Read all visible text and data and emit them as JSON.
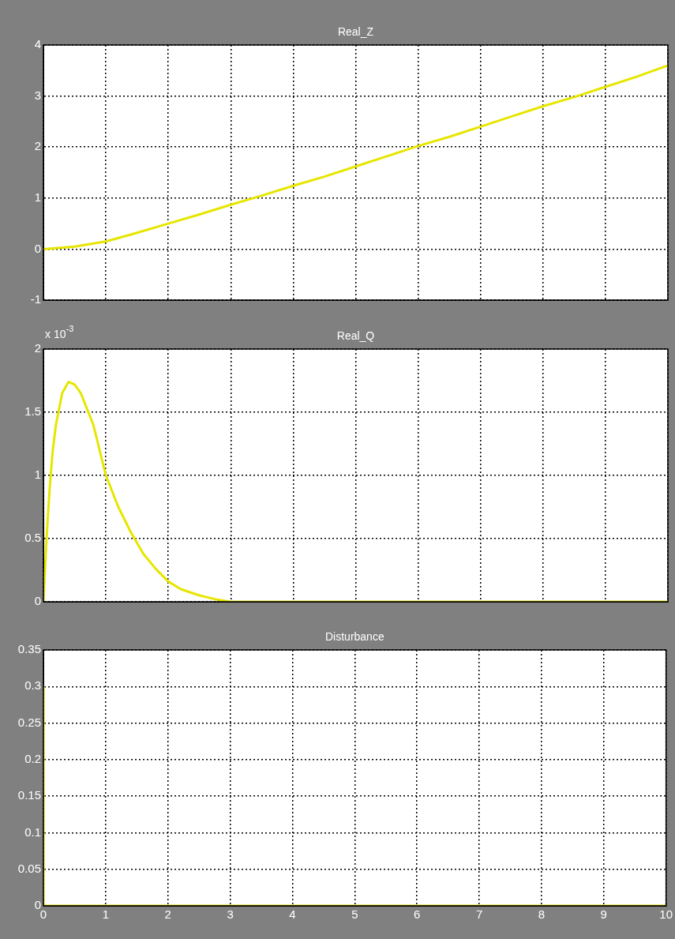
{
  "chart_data": [
    {
      "type": "line",
      "title": "Real_Z",
      "x": [
        0,
        0.5,
        1,
        1.5,
        2,
        2.5,
        3,
        3.5,
        4,
        4.5,
        5,
        5.5,
        6,
        6.5,
        7,
        7.5,
        8,
        8.5,
        9,
        9.5,
        10
      ],
      "series": [
        {
          "color": "#e6e600",
          "values": [
            0,
            0.05,
            0.15,
            0.32,
            0.5,
            0.68,
            0.87,
            1.05,
            1.24,
            1.42,
            1.62,
            1.82,
            2.02,
            2.2,
            2.4,
            2.6,
            2.8,
            2.98,
            3.18,
            3.38,
            3.6
          ]
        }
      ],
      "xlim": [
        0,
        10
      ],
      "xticks": [
        0,
        1,
        2,
        3,
        4,
        5,
        6,
        7,
        8,
        9,
        10
      ],
      "ylim": [
        -1,
        4
      ],
      "yticks": [
        -1,
        0,
        1,
        2,
        3,
        4
      ],
      "grid": true,
      "legend": false,
      "tick_labels": "y",
      "marker": "none",
      "line_style": "solid"
    },
    {
      "type": "line",
      "title": "Real_Q",
      "annotations": [
        "x 10$^{-3}$"
      ],
      "x": [
        0,
        0.05,
        0.1,
        0.15,
        0.2,
        0.3,
        0.4,
        0.5,
        0.6,
        0.8,
        1,
        1.2,
        1.4,
        1.6,
        1.8,
        2,
        2.2,
        2.5,
        2.8,
        3,
        10
      ],
      "series": [
        {
          "color": "#e6e600",
          "values": [
            0,
            0.5,
            0.9,
            1.2,
            1.4,
            1.65,
            1.74,
            1.72,
            1.65,
            1.4,
            1.0,
            0.75,
            0.55,
            0.38,
            0.26,
            0.16,
            0.1,
            0.05,
            0.015,
            0,
            0
          ]
        }
      ],
      "xlim": [
        0,
        10
      ],
      "xticks": [
        0,
        1,
        2,
        3,
        4,
        5,
        6,
        7,
        8,
        9,
        10
      ],
      "ylim": [
        0,
        2
      ],
      "yticks": [
        0,
        0.5,
        1,
        1.5,
        2
      ],
      "grid": true,
      "legend": false,
      "tick_labels": "y",
      "marker": "none",
      "line_style": "solid"
    },
    {
      "type": "line",
      "title": "Disturbance",
      "x": [
        0,
        0,
        10
      ],
      "series": [
        {
          "color": "#e6e600",
          "values": [
            0.3,
            0,
            0
          ]
        }
      ],
      "xlim": [
        0,
        10
      ],
      "xticks": [
        0,
        1,
        2,
        3,
        4,
        5,
        6,
        7,
        8,
        9,
        10
      ],
      "ylim": [
        0,
        0.35
      ],
      "yticks": [
        0,
        0.05,
        0.1,
        0.15,
        0.2,
        0.25,
        0.3,
        0.35
      ],
      "grid": true,
      "legend": false,
      "marker": "none",
      "line_style": "solid"
    }
  ]
}
